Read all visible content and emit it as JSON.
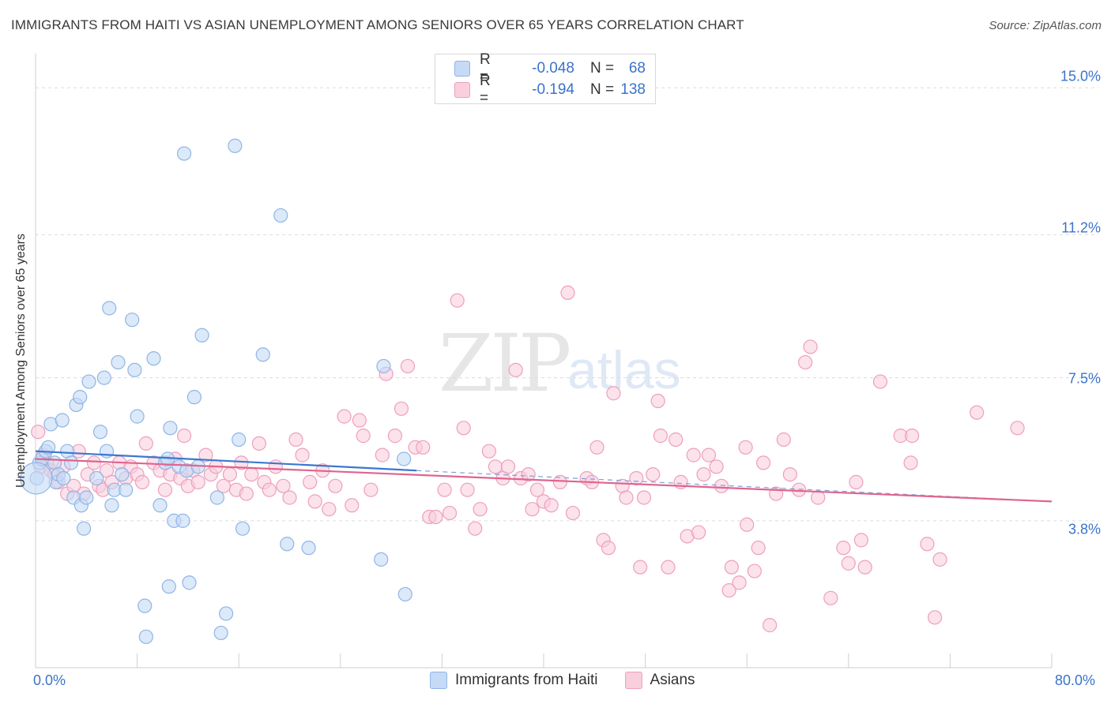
{
  "header": {
    "title": "IMMIGRANTS FROM HAITI VS ASIAN UNEMPLOYMENT AMONG SENIORS OVER 65 YEARS CORRELATION CHART",
    "source": "Source: ZipAtlas.com"
  },
  "watermark": {
    "zip": "ZIP",
    "atlas": "atlas"
  },
  "legend": {
    "r_label": "R =",
    "n_label": "N =",
    "haiti": {
      "r": "-0.048",
      "n": "68"
    },
    "asians": {
      "r": "-0.194",
      "n": "138"
    }
  },
  "bottom_legend": {
    "haiti": "Immigrants from Haiti",
    "asians": "Asians"
  },
  "axes": {
    "x_min_label": "0.0%",
    "x_max_label": "80.0%",
    "y_label": "Unemployment Among Seniors over 65 years",
    "y_ticks": [
      "15.0%",
      "11.2%",
      "7.5%",
      "3.8%"
    ]
  },
  "colors": {
    "haiti": "#3a78d0",
    "haiti_fill": "#c5daf5",
    "asians": "#e0648e",
    "asians_fill": "#f9cedd",
    "axis_text": "#3b73c9"
  },
  "chart_data": {
    "type": "scatter",
    "title": "IMMIGRANTS FROM HAITI VS ASIAN UNEMPLOYMENT AMONG SENIORS OVER 65 YEARS CORRELATION CHART",
    "xlabel": "",
    "ylabel": "Unemployment Among Seniors over 65 years",
    "xlim": [
      0,
      80
    ],
    "ylim": [
      0,
      15.7
    ],
    "y_ticks": [
      3.8,
      7.5,
      11.2,
      15.0
    ],
    "series": [
      {
        "name": "Immigrants from Haiti",
        "r": -0.048,
        "n": 68,
        "trend": {
          "x": [
            0,
            30
          ],
          "y": [
            5.6,
            5.1
          ],
          "dashed_to": [
            80,
            4.3
          ]
        },
        "points": [
          [
            0.1,
            4.9
          ],
          [
            0.3,
            5.3
          ],
          [
            0.5,
            5.4
          ],
          [
            0.8,
            5.6
          ],
          [
            1.0,
            5.7
          ],
          [
            1.2,
            6.3
          ],
          [
            1.5,
            5.3
          ],
          [
            1.6,
            4.8
          ],
          [
            1.8,
            5.0
          ],
          [
            2.1,
            6.4
          ],
          [
            2.2,
            4.9
          ],
          [
            2.5,
            5.6
          ],
          [
            2.8,
            5.3
          ],
          [
            3.0,
            4.4
          ],
          [
            3.2,
            6.8
          ],
          [
            3.5,
            7.0
          ],
          [
            3.6,
            4.2
          ],
          [
            3.8,
            3.6
          ],
          [
            4.0,
            4.4
          ],
          [
            4.2,
            7.4
          ],
          [
            4.8,
            4.9
          ],
          [
            5.1,
            6.1
          ],
          [
            5.4,
            7.5
          ],
          [
            5.6,
            5.6
          ],
          [
            5.8,
            9.3
          ],
          [
            6.0,
            4.2
          ],
          [
            6.2,
            4.6
          ],
          [
            6.5,
            7.9
          ],
          [
            6.8,
            5.0
          ],
          [
            7.1,
            4.6
          ],
          [
            7.6,
            9.0
          ],
          [
            7.8,
            7.7
          ],
          [
            8.0,
            6.5
          ],
          [
            8.6,
            1.6
          ],
          [
            8.7,
            0.8
          ],
          [
            9.3,
            8.0
          ],
          [
            9.8,
            4.2
          ],
          [
            10.2,
            5.3
          ],
          [
            10.4,
            5.4
          ],
          [
            10.5,
            2.1
          ],
          [
            10.6,
            6.2
          ],
          [
            10.9,
            3.8
          ],
          [
            11.3,
            5.2
          ],
          [
            11.6,
            3.8
          ],
          [
            11.7,
            13.3
          ],
          [
            11.9,
            5.1
          ],
          [
            12.1,
            2.2
          ],
          [
            12.5,
            7.0
          ],
          [
            12.8,
            5.2
          ],
          [
            13.1,
            8.6
          ],
          [
            14.3,
            4.4
          ],
          [
            14.6,
            0.9
          ],
          [
            15.0,
            1.4
          ],
          [
            15.7,
            13.5
          ],
          [
            16.0,
            5.9
          ],
          [
            16.3,
            3.6
          ],
          [
            17.9,
            8.1
          ],
          [
            19.3,
            11.7
          ],
          [
            19.8,
            3.2
          ],
          [
            21.5,
            3.1
          ],
          [
            27.2,
            2.8
          ],
          [
            27.4,
            7.8
          ],
          [
            29.1,
            1.9
          ],
          [
            29.0,
            5.4
          ]
        ]
      },
      {
        "name": "Asians",
        "r": -0.194,
        "n": 138,
        "trend": {
          "x": [
            0,
            80
          ],
          "y": [
            5.4,
            4.3
          ]
        },
        "points": [
          [
            0.2,
            6.1
          ],
          [
            0.4,
            5.2
          ],
          [
            0.6,
            5.5
          ],
          [
            0.9,
            5.3
          ],
          [
            1.2,
            5.1
          ],
          [
            1.5,
            5.0
          ],
          [
            1.8,
            4.8
          ],
          [
            2.2,
            5.2
          ],
          [
            2.5,
            4.5
          ],
          [
            3.0,
            4.7
          ],
          [
            3.4,
            5.6
          ],
          [
            3.8,
            4.5
          ],
          [
            4.1,
            5.0
          ],
          [
            4.6,
            5.3
          ],
          [
            5.0,
            4.7
          ],
          [
            5.3,
            4.6
          ],
          [
            5.6,
            5.1
          ],
          [
            6.0,
            4.8
          ],
          [
            6.6,
            5.3
          ],
          [
            7.1,
            4.9
          ],
          [
            7.5,
            5.2
          ],
          [
            8.0,
            5.0
          ],
          [
            8.4,
            4.8
          ],
          [
            8.7,
            5.8
          ],
          [
            9.3,
            5.3
          ],
          [
            9.8,
            5.1
          ],
          [
            10.2,
            4.6
          ],
          [
            10.6,
            5.0
          ],
          [
            11.0,
            5.4
          ],
          [
            11.4,
            4.9
          ],
          [
            11.7,
            6.0
          ],
          [
            12.0,
            4.7
          ],
          [
            12.4,
            5.1
          ],
          [
            12.8,
            4.8
          ],
          [
            13.4,
            5.5
          ],
          [
            13.8,
            5.0
          ],
          [
            14.2,
            5.2
          ],
          [
            14.8,
            4.7
          ],
          [
            15.3,
            5.0
          ],
          [
            15.8,
            4.6
          ],
          [
            16.2,
            5.3
          ],
          [
            16.6,
            4.5
          ],
          [
            17.0,
            5.0
          ],
          [
            17.6,
            5.8
          ],
          [
            18.0,
            4.8
          ],
          [
            18.4,
            4.6
          ],
          [
            18.9,
            5.2
          ],
          [
            19.5,
            4.7
          ],
          [
            20.0,
            4.4
          ],
          [
            20.5,
            5.9
          ],
          [
            21.0,
            5.5
          ],
          [
            21.6,
            4.8
          ],
          [
            22.0,
            4.3
          ],
          [
            22.6,
            5.1
          ],
          [
            23.1,
            4.1
          ],
          [
            23.6,
            4.7
          ],
          [
            24.3,
            6.5
          ],
          [
            24.9,
            4.2
          ],
          [
            25.5,
            6.4
          ],
          [
            25.8,
            6.0
          ],
          [
            26.4,
            4.6
          ],
          [
            27.3,
            5.5
          ],
          [
            27.6,
            7.6
          ],
          [
            28.3,
            6.0
          ],
          [
            28.8,
            6.7
          ],
          [
            29.3,
            7.8
          ],
          [
            29.9,
            5.7
          ],
          [
            30.5,
            5.7
          ],
          [
            31.0,
            3.9
          ],
          [
            31.5,
            3.9
          ],
          [
            32.2,
            4.6
          ],
          [
            32.6,
            4.0
          ],
          [
            33.2,
            9.5
          ],
          [
            33.7,
            6.2
          ],
          [
            34.0,
            4.6
          ],
          [
            34.6,
            3.6
          ],
          [
            35.0,
            4.1
          ],
          [
            35.7,
            5.6
          ],
          [
            36.2,
            5.2
          ],
          [
            36.8,
            4.9
          ],
          [
            37.2,
            5.2
          ],
          [
            37.8,
            7.7
          ],
          [
            38.2,
            4.9
          ],
          [
            38.8,
            5.0
          ],
          [
            39.1,
            4.1
          ],
          [
            39.5,
            4.6
          ],
          [
            40.0,
            4.3
          ],
          [
            40.6,
            4.2
          ],
          [
            41.3,
            4.8
          ],
          [
            41.9,
            9.7
          ],
          [
            42.3,
            4.0
          ],
          [
            43.4,
            4.9
          ],
          [
            43.8,
            4.8
          ],
          [
            44.2,
            5.7
          ],
          [
            44.7,
            3.3
          ],
          [
            45.1,
            3.1
          ],
          [
            45.5,
            7.1
          ],
          [
            46.2,
            4.7
          ],
          [
            46.5,
            4.4
          ],
          [
            47.3,
            4.9
          ],
          [
            47.6,
            2.6
          ],
          [
            47.9,
            4.4
          ],
          [
            48.6,
            5.0
          ],
          [
            49.0,
            6.9
          ],
          [
            49.2,
            6.0
          ],
          [
            49.8,
            2.6
          ],
          [
            50.4,
            5.9
          ],
          [
            50.8,
            4.8
          ],
          [
            51.3,
            3.4
          ],
          [
            51.8,
            5.5
          ],
          [
            52.2,
            3.5
          ],
          [
            52.6,
            5.0
          ],
          [
            53.0,
            5.5
          ],
          [
            53.6,
            5.2
          ],
          [
            54.0,
            4.7
          ],
          [
            54.6,
            2.0
          ],
          [
            54.8,
            2.6
          ],
          [
            55.4,
            2.2
          ],
          [
            55.9,
            5.7
          ],
          [
            56.0,
            3.7
          ],
          [
            56.6,
            2.5
          ],
          [
            56.9,
            3.1
          ],
          [
            57.3,
            5.3
          ],
          [
            57.8,
            1.1
          ],
          [
            58.3,
            4.5
          ],
          [
            58.9,
            5.9
          ],
          [
            59.4,
            5.0
          ],
          [
            60.1,
            4.6
          ],
          [
            60.6,
            7.9
          ],
          [
            61.0,
            8.3
          ],
          [
            61.6,
            4.4
          ],
          [
            62.6,
            1.8
          ],
          [
            63.6,
            3.1
          ],
          [
            64.0,
            2.7
          ],
          [
            64.6,
            4.8
          ],
          [
            65.0,
            3.3
          ],
          [
            65.3,
            2.6
          ],
          [
            66.5,
            7.4
          ],
          [
            68.1,
            6.0
          ],
          [
            68.9,
            5.3
          ],
          [
            69.0,
            6.0
          ],
          [
            70.2,
            3.2
          ],
          [
            70.8,
            1.3
          ],
          [
            71.2,
            2.8
          ],
          [
            74.1,
            6.6
          ],
          [
            77.3,
            6.2
          ]
        ]
      }
    ]
  }
}
